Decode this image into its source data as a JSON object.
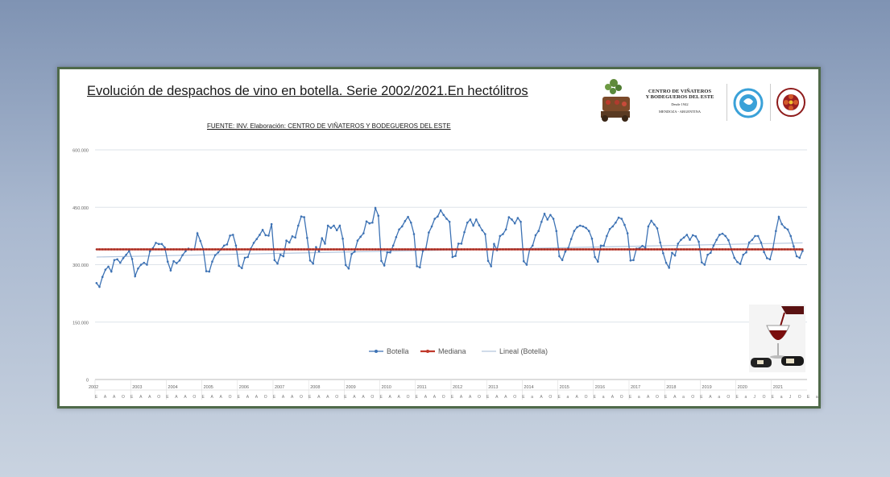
{
  "title": "Evolución de despachos de vino en botella. Serie 2002/2021.En hectólitros",
  "source": "FUENTE: INV. Elaboración: CENTRO DE VIÑATEROS Y BODEGUEROS DEL ESTE",
  "org": {
    "name_line1": "CENTRO DE VIÑATEROS",
    "name_line2": "Y BODEGUEROS DEL ESTE",
    "since": "Desde 1942",
    "location": "MENDOZA - ARGENTINA"
  },
  "colors": {
    "botella": "#3d72b4",
    "mediana": "#c0392b",
    "lineal": "#b3c6de",
    "grid": "#dde3ea",
    "frame": "#4f6a4a"
  },
  "chart_data": {
    "type": "line",
    "ylim": [
      0,
      600000
    ],
    "yticks": [
      0,
      150000,
      300000,
      450000,
      600000
    ],
    "ytick_labels": [
      "0",
      "150.000",
      "300.000",
      "450.000",
      "600.000"
    ],
    "year_labels": [
      "2002",
      "2003",
      "2004",
      "2005",
      "2006",
      "2007",
      "2008",
      "2009",
      "2010",
      "2011",
      "2012",
      "2013",
      "2014",
      "2015",
      "2016",
      "2017",
      "2018",
      "2019",
      "2020",
      "2021"
    ],
    "month_labels": "E A A O E A A O E A A O E A A O E A A O E A A O E A A O E A A O E A A O E A A O E A A O E A A O E a A O E a A O E a A O E a A O E A a O E A a O E a J O E a J O E a J O E a J O E a J O E a J O E a J O E a J O E a J O E a",
    "legend": [
      "Botella",
      "Mediana",
      "Lineal (Botella)"
    ],
    "legend_position": "bottom",
    "grid": true,
    "series": [
      {
        "name": "Botella",
        "start": "2002-01",
        "frequency": "monthly",
        "values": [
          252000,
          242000,
          268000,
          287000,
          295000,
          282000,
          312000,
          314000,
          305000,
          317000,
          326000,
          336000,
          315000,
          270000,
          290000,
          300000,
          305000,
          300000,
          335000,
          343000,
          357000,
          354000,
          354000,
          345000,
          308000,
          285000,
          309000,
          304000,
          311000,
          325000,
          335000,
          342000,
          339000,
          340000,
          382000,
          362000,
          340000,
          283000,
          282000,
          308000,
          325000,
          332000,
          340000,
          350000,
          353000,
          376000,
          378000,
          350000,
          297000,
          291000,
          318000,
          320000,
          342000,
          357000,
          367000,
          378000,
          391000,
          377000,
          376000,
          406000,
          312000,
          303000,
          326000,
          322000,
          363000,
          358000,
          374000,
          371000,
          402000,
          426000,
          424000,
          370000,
          311000,
          303000,
          346000,
          335000,
          369000,
          355000,
          402000,
          396000,
          402000,
          390000,
          402000,
          368000,
          299000,
          290000,
          328000,
          334000,
          363000,
          373000,
          382000,
          413000,
          408000,
          410000,
          448000,
          428000,
          310000,
          298000,
          332000,
          332000,
          350000,
          372000,
          392000,
          400000,
          414000,
          425000,
          410000,
          380000,
          296000,
          293000,
          336000,
          342000,
          384000,
          400000,
          420000,
          426000,
          442000,
          430000,
          420000,
          412000,
          320000,
          323000,
          355000,
          355000,
          385000,
          410000,
          418000,
          402000,
          418000,
          403000,
          390000,
          380000,
          310000,
          296000,
          354000,
          338000,
          375000,
          380000,
          392000,
          424000,
          418000,
          408000,
          422000,
          412000,
          309000,
          300000,
          340000,
          350000,
          377000,
          388000,
          412000,
          433000,
          418000,
          430000,
          420000,
          388000,
          322000,
          312000,
          334000,
          343000,
          367000,
          388000,
          398000,
          402000,
          400000,
          396000,
          388000,
          368000,
          320000,
          308000,
          350000,
          350000,
          375000,
          393000,
          400000,
          410000,
          423000,
          420000,
          404000,
          382000,
          311000,
          312000,
          342000,
          343000,
          349000,
          344000,
          400000,
          415000,
          405000,
          395000,
          358000,
          330000,
          305000,
          292000,
          331000,
          324000,
          355000,
          365000,
          371000,
          378000,
          365000,
          377000,
          374000,
          360000,
          306000,
          300000,
          326000,
          331000,
          350000,
          365000,
          378000,
          381000,
          375000,
          364000,
          340000,
          318000,
          307000,
          302000,
          326000,
          332000,
          358000,
          365000,
          375000,
          375000,
          358000,
          333000,
          317000,
          314000,
          342000,
          388000,
          425000,
          406000,
          397000,
          392000,
          375000,
          348000,
          322000,
          318000,
          336000
        ]
      },
      {
        "name": "Mediana",
        "values": [
          340000
        ]
      },
      {
        "name": "Lineal (Botella)",
        "values": [
          320000,
          357000
        ]
      }
    ]
  }
}
